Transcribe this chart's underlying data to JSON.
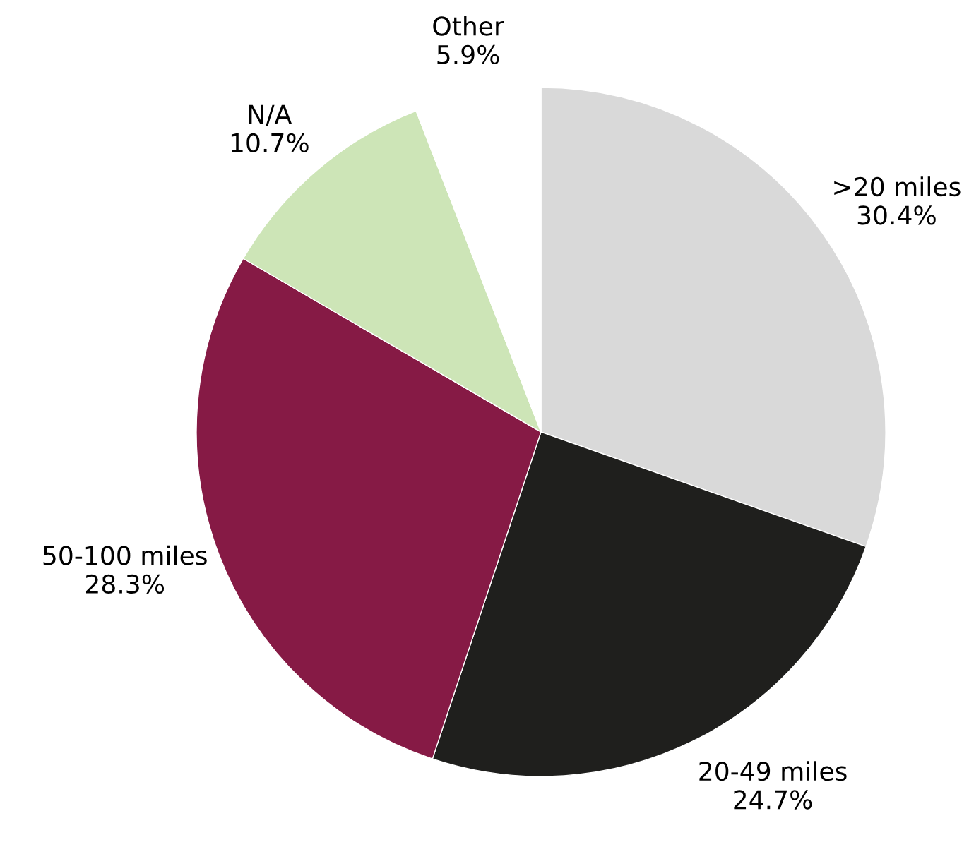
{
  "chart_data": {
    "type": "pie",
    "categories": [
      ">20 miles",
      "20-49 miles",
      "50-100 miles",
      "N/A",
      "Other"
    ],
    "values": [
      30.4,
      24.7,
      28.3,
      10.7,
      5.9
    ],
    "colors": [
      "#d9d9d9",
      "#1f1f1d",
      "#861a45",
      "#cde5b7",
      "#ffffff"
    ],
    "value_labels": [
      "30.4%",
      "24.7%",
      "28.3%",
      "10.7%",
      "5.9%"
    ],
    "legend": false
  }
}
